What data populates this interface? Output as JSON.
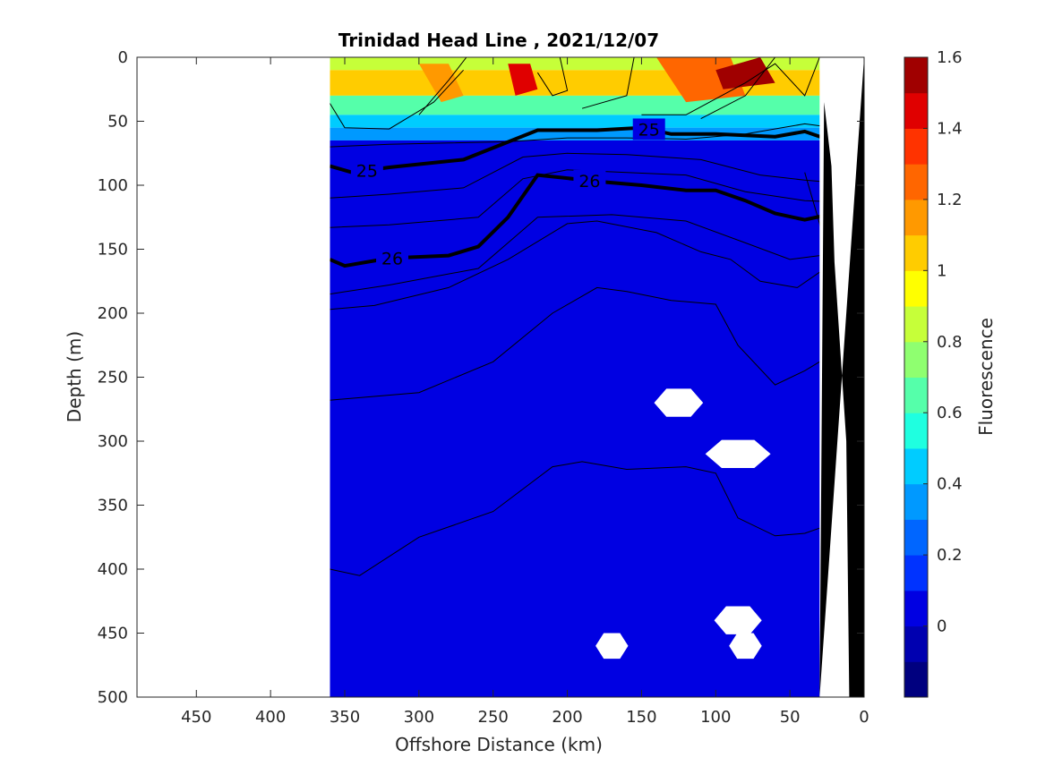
{
  "chart_data": {
    "type": "heatmap",
    "title": "Trinidad Head Line , 2021/12/07",
    "xlabel": "Offshore Distance (km)",
    "ylabel": "Depth (m)",
    "xlim": [
      490,
      0
    ],
    "ylim": [
      500,
      0
    ],
    "x_ticks": [
      450,
      400,
      350,
      300,
      250,
      200,
      150,
      100,
      50,
      0
    ],
    "y_ticks": [
      0,
      50,
      100,
      150,
      200,
      250,
      300,
      350,
      400,
      450,
      500
    ],
    "grid": false,
    "colorbar": {
      "label": "Fluorescence",
      "range": [
        -0.2,
        1.6
      ],
      "ticks": [
        0,
        0.2,
        0.4,
        0.6,
        0.8,
        1,
        1.2,
        1.4,
        1.6
      ],
      "tick_labels": [
        "0",
        "0.2",
        "0.4",
        "0.6",
        "0.8",
        "1",
        "1.2",
        "1.4",
        "1.6"
      ],
      "colors": [
        "#00007f",
        "#0000b0",
        "#0000e2",
        "#0033ff",
        "#0066ff",
        "#0099ff",
        "#00ccff",
        "#1fffe0",
        "#55ffaa",
        "#8fff70",
        "#c6ff39",
        "#ffff00",
        "#ffcc00",
        "#ff9900",
        "#ff6600",
        "#ff3300",
        "#e00000",
        "#a00000"
      ]
    },
    "data_extent_km": [
      360,
      20
    ],
    "fluorescence_bands": [
      {
        "depth_top": 0,
        "depth_bottom": 10,
        "value": 0.8
      },
      {
        "depth_top": 10,
        "depth_bottom": 30,
        "value": 1.0
      },
      {
        "depth_top": 30,
        "depth_bottom": 45,
        "value": 0.7
      },
      {
        "depth_top": 45,
        "depth_bottom": 55,
        "value": 0.5
      },
      {
        "depth_top": 55,
        "depth_bottom": 65,
        "value": 0.3
      },
      {
        "depth_top": 65,
        "depth_bottom": 500,
        "value": 0.0
      }
    ],
    "fluorescence_patches": [
      {
        "x": [
          300,
          280,
          270,
          285
        ],
        "depth": [
          5,
          5,
          30,
          35
        ],
        "value": 1.2
      },
      {
        "x": [
          240,
          225,
          220,
          235
        ],
        "depth": [
          5,
          5,
          25,
          30
        ],
        "value": 1.4
      },
      {
        "x": [
          140,
          90,
          80,
          120
        ],
        "depth": [
          0,
          0,
          30,
          35
        ],
        "value": 1.3
      },
      {
        "x": [
          100,
          70,
          60,
          95
        ],
        "depth": [
          10,
          0,
          20,
          25
        ],
        "value": 1.5
      }
    ],
    "contour_lines": [
      {
        "level": 25,
        "bold": true,
        "label_x": [
          335,
          145
        ],
        "x": [
          360,
          345,
          320,
          270,
          220,
          180,
          150,
          130,
          100,
          60,
          40,
          20
        ],
        "depth": [
          85,
          90,
          86,
          80,
          57,
          57,
          55,
          60,
          60,
          62,
          58,
          66
        ]
      },
      {
        "level": 26,
        "bold": true,
        "label_x": [
          318,
          185
        ],
        "x": [
          360,
          350,
          320,
          280,
          260,
          240,
          220,
          180,
          150,
          120,
          100,
          80,
          60,
          40,
          20
        ],
        "depth": [
          158,
          163,
          157,
          155,
          148,
          125,
          92,
          97,
          100,
          104,
          104,
          112,
          122,
          127,
          122
        ]
      },
      {
        "level": 24.8,
        "bold": false,
        "x": [
          360,
          320,
          280,
          240,
          200,
          160,
          120,
          80,
          40,
          20
        ],
        "depth": [
          70,
          68,
          67,
          66,
          63,
          63,
          64,
          60,
          52,
          55
        ]
      },
      {
        "level": 25.5,
        "bold": false,
        "x": [
          360,
          320,
          270,
          230,
          200,
          160,
          110,
          70,
          40,
          20
        ],
        "depth": [
          110,
          107,
          102,
          78,
          75,
          76,
          80,
          92,
          96,
          98
        ]
      },
      {
        "level": 25.8,
        "bold": false,
        "x": [
          360,
          320,
          260,
          230,
          200,
          160,
          120,
          80,
          40,
          20
        ],
        "depth": [
          133,
          131,
          125,
          95,
          88,
          90,
          92,
          105,
          112,
          113
        ]
      },
      {
        "level": 26.2,
        "bold": false,
        "x": [
          360,
          320,
          260,
          220,
          170,
          120,
          80,
          50,
          30,
          20
        ],
        "depth": [
          185,
          178,
          165,
          125,
          123,
          128,
          145,
          158,
          155,
          152
        ]
      },
      {
        "level": 26.4,
        "bold": false,
        "x": [
          360,
          330,
          280,
          240,
          200,
          180,
          140,
          110,
          90,
          70,
          45,
          30
        ],
        "depth": [
          197,
          194,
          180,
          158,
          130,
          128,
          137,
          152,
          158,
          175,
          180,
          168
        ]
      },
      {
        "level": 26.6,
        "bold": false,
        "x": [
          360,
          300,
          250,
          210,
          180,
          160,
          130,
          100,
          85,
          60,
          40,
          30
        ],
        "depth": [
          268,
          262,
          238,
          200,
          180,
          183,
          190,
          193,
          225,
          256,
          245,
          238
        ]
      },
      {
        "level": 26.8,
        "bold": false,
        "x": [
          360,
          340,
          300,
          250,
          210,
          190,
          160,
          120,
          100,
          85,
          60,
          40,
          30
        ],
        "depth": [
          400,
          405,
          375,
          355,
          320,
          316,
          322,
          320,
          325,
          360,
          374,
          372,
          368
        ]
      }
    ],
    "contour_upper": [
      {
        "x": [
          360,
          350,
          320,
          290,
          270
        ],
        "depth": [
          36,
          55,
          56,
          35,
          10
        ]
      },
      {
        "x": [
          300,
          280,
          268
        ],
        "depth": [
          45,
          18,
          0
        ]
      },
      {
        "x": [
          220,
          210,
          200,
          205
        ],
        "depth": [
          12,
          30,
          26,
          0
        ]
      },
      {
        "x": [
          190,
          160,
          155
        ],
        "depth": [
          40,
          30,
          0
        ]
      },
      {
        "x": [
          150,
          120,
          80,
          60,
          40,
          30
        ],
        "depth": [
          45,
          45,
          20,
          5,
          30,
          0
        ]
      },
      {
        "x": [
          110,
          80,
          60
        ],
        "depth": [
          48,
          30,
          0
        ]
      },
      {
        "x": [
          40,
          30,
          25
        ],
        "depth": [
          90,
          130,
          160
        ]
      }
    ],
    "missing_regions": [
      {
        "x": [
          360,
          490
        ],
        "depth": [
          0,
          500
        ],
        "note": "no data"
      },
      {
        "x": [
          125,
          270
        ],
        "w_km": 33,
        "h_m": 22
      },
      {
        "x": [
          85,
          310
        ],
        "w_km": 44,
        "h_m": 22
      },
      {
        "x": [
          85,
          440
        ],
        "w_km": 32,
        "h_m": 22
      },
      {
        "x": [
          80,
          460
        ],
        "w_km": 22,
        "h_m": 20
      },
      {
        "x": [
          170,
          460
        ],
        "w_km": 22,
        "h_m": 20
      }
    ],
    "seafloor": {
      "x": [
        0,
        0,
        10,
        12,
        20,
        22,
        27,
        30
      ],
      "depth": [
        0,
        500,
        500,
        300,
        160,
        85,
        35,
        500
      ]
    }
  }
}
